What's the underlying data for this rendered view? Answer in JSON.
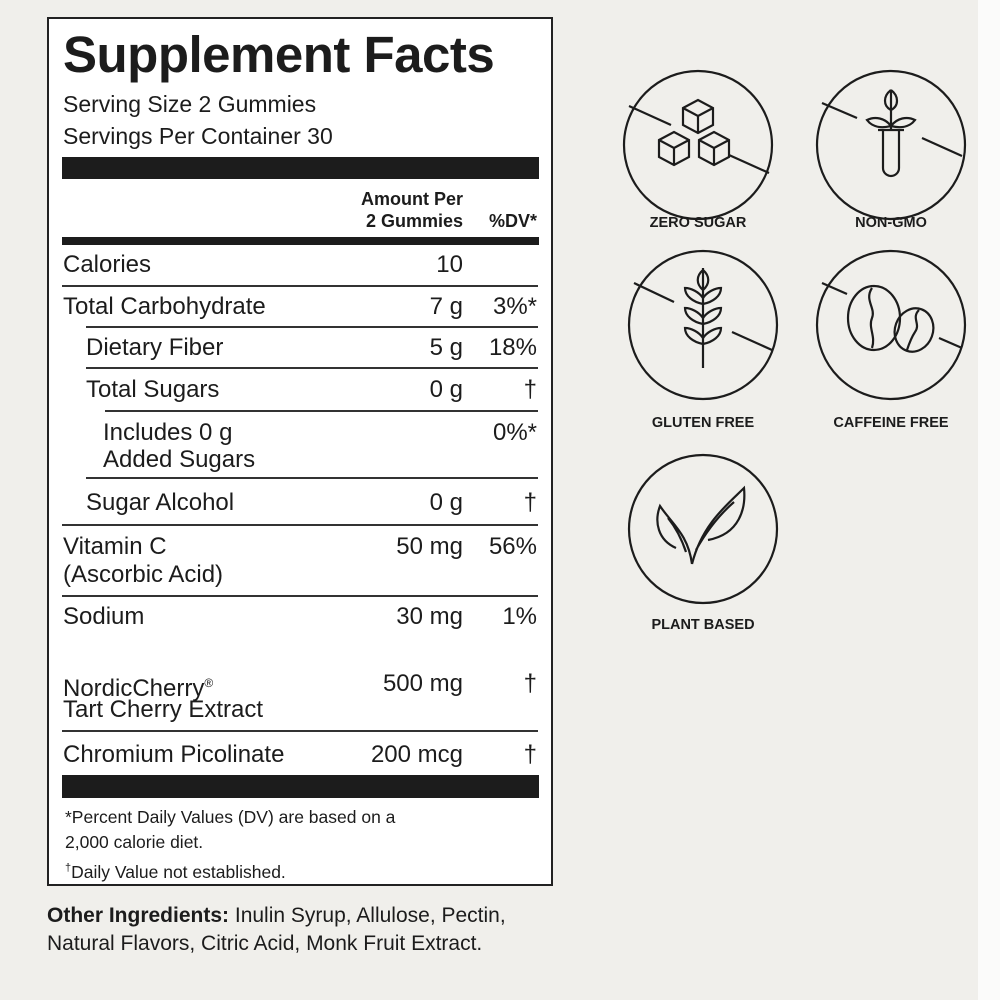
{
  "label": {
    "title": "Supplement Facts",
    "serving_size": "Serving Size 2 Gummies",
    "servings_per_container": "Servings Per Container 30",
    "header_amount_line1": "Amount Per",
    "header_amount_line2": "2 Gummies",
    "header_dv": "%DV*",
    "rows": [
      {
        "name": "Calories",
        "amount": "10",
        "dv": ""
      },
      {
        "name": "Total Carbohydrate",
        "amount": "7 g",
        "dv": "3%*"
      },
      {
        "name": "Dietary Fiber",
        "amount": "5 g",
        "dv": "18%"
      },
      {
        "name": "Total Sugars",
        "amount": "0 g",
        "dv": "†"
      },
      {
        "name": "Includes 0 g",
        "name2": "Added Sugars",
        "amount": "",
        "dv": "0%*"
      },
      {
        "name": "Sugar Alcohol",
        "amount": "0 g",
        "dv": "†"
      },
      {
        "name": "Vitamin C",
        "name2": "(Ascorbic Acid)",
        "amount": "50 mg",
        "dv": "56%"
      },
      {
        "name": "Sodium",
        "amount": "30 mg",
        "dv": "1%"
      },
      {
        "name": "NordicCherry",
        "sup": "®",
        "name2": "Tart Cherry Extract",
        "amount": "500 mg",
        "dv": "†"
      },
      {
        "name": "Chromium Picolinate",
        "amount": "200 mcg",
        "dv": "†"
      }
    ],
    "footnote1": "*Percent Daily Values (DV) are based on a",
    "footnote2": "2,000 calorie diet.",
    "footnote3_mark": "†",
    "footnote3": "Daily Value not established."
  },
  "other_ingredients": {
    "label": "Other Ingredients:",
    "text": " Inulin Syrup, Allulose, Pectin, Natural Flavors, Citric Acid, Monk Fruit Extract."
  },
  "badges": [
    {
      "label": "ZERO SUGAR",
      "icon": "sugar-cubes-icon"
    },
    {
      "label": "NON-GMO",
      "icon": "plant-test-tube-icon"
    },
    {
      "label": "GLUTEN FREE",
      "icon": "wheat-icon"
    },
    {
      "label": "CAFFEINE FREE",
      "icon": "coffee-beans-icon"
    },
    {
      "label": "PLANT BASED",
      "icon": "leaves-icon"
    }
  ],
  "colors": {
    "background": "#f0efeb",
    "ink": "#1c1c1c",
    "label_bg": "#ffffff"
  }
}
